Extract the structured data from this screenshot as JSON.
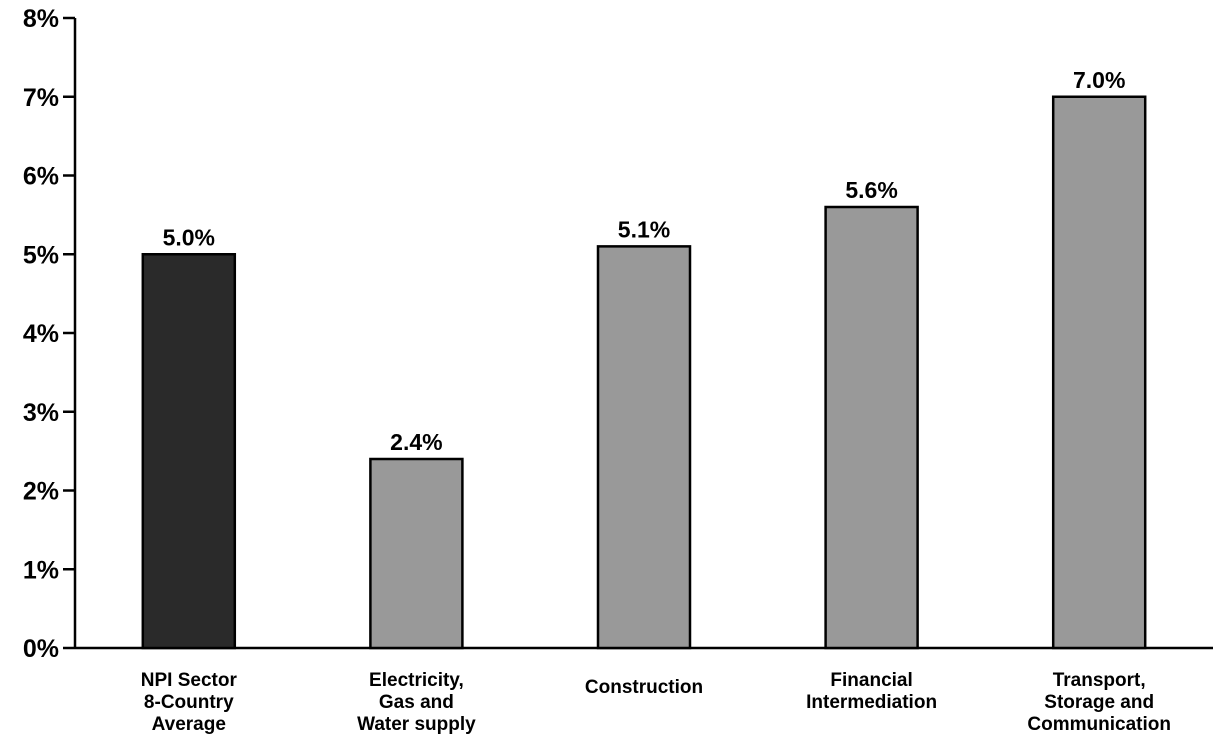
{
  "chart_data": {
    "type": "bar",
    "categories": [
      [
        "NPI Sector",
        "8-Country",
        "Average"
      ],
      [
        "Electricity,",
        "Gas and",
        "Water supply"
      ],
      [
        "Construction"
      ],
      [
        "Financial",
        "Intermediation"
      ],
      [
        "Transport,",
        "Storage and",
        "Communication"
      ]
    ],
    "values": [
      5.0,
      2.4,
      5.1,
      5.6,
      7.0
    ],
    "value_labels": [
      "5.0%",
      "2.4%",
      "5.1%",
      "5.6%",
      "7.0%"
    ],
    "bar_colors": [
      "#2a2a2a",
      "#999999",
      "#999999",
      "#999999",
      "#999999"
    ],
    "ylim": [
      0,
      8
    ],
    "yticks": [
      0,
      1,
      2,
      3,
      4,
      5,
      6,
      7,
      8
    ],
    "ytick_labels": [
      "0%",
      "1%",
      "2%",
      "3%",
      "4%",
      "5%",
      "6%",
      "7%",
      "8%"
    ],
    "title": "",
    "xlabel": "",
    "ylabel": "",
    "grid": false,
    "legend": "none"
  }
}
